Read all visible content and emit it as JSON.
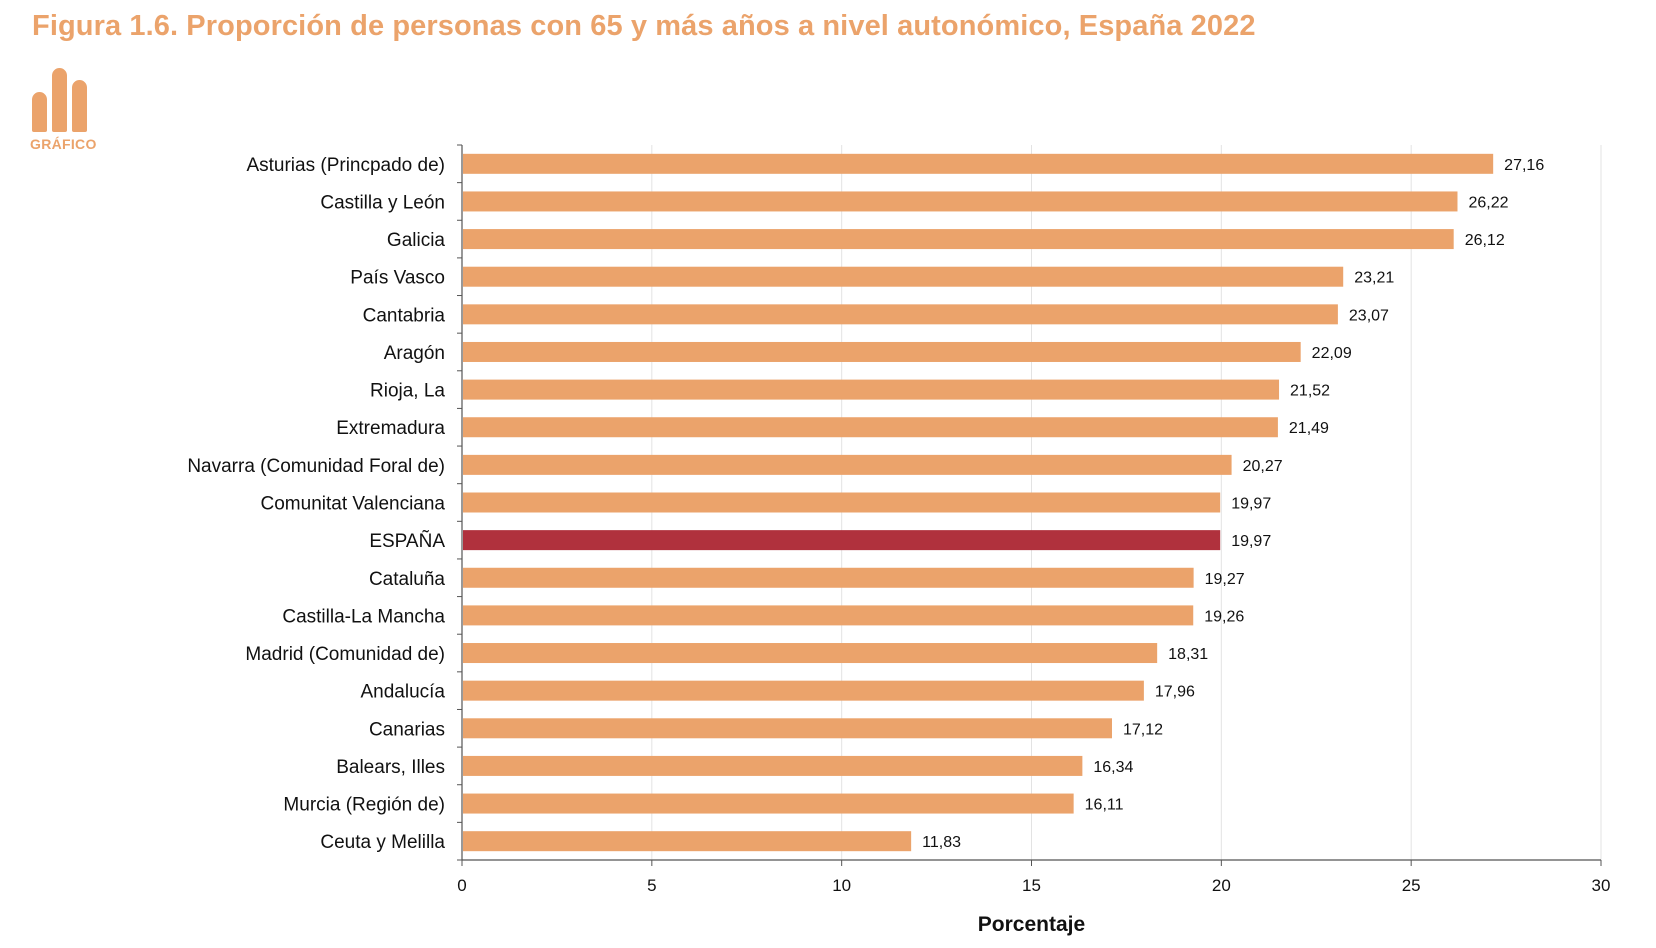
{
  "title": "Figura 1.6. Proporción de personas con 65 y más años a nivel autonómico, España 2022",
  "logo": {
    "label": "GRÁFICO",
    "icon": "bar-chart-logo-icon"
  },
  "colors": {
    "bar": "#eba36b",
    "highlight": "#b0313d",
    "title": "#eba36b",
    "grid": "#e3e3e3"
  },
  "chart_data": {
    "type": "bar",
    "orientation": "horizontal",
    "title": "Figura 1.6. Proporción de personas con 65 y más años a nivel autonómico, España 2022",
    "xlabel": "Porcentaje",
    "ylabel": "",
    "xlim": [
      0,
      30
    ],
    "xticks": [
      0,
      5,
      10,
      15,
      20,
      25,
      30
    ],
    "grid": true,
    "highlight": "ESPAÑA",
    "categories": [
      "Asturias (Princpado de)",
      "Castilla y León",
      "Galicia",
      "País Vasco",
      "Cantabria",
      "Aragón",
      "Rioja, La",
      "Extremadura",
      "Navarra (Comunidad Foral de)",
      "Comunitat Valenciana",
      "ESPAÑA",
      "Cataluña",
      "Castilla-La Mancha",
      "Madrid (Comunidad de)",
      "Andalucía",
      "Canarias",
      "Balears, Illes",
      "Murcia (Región de)",
      "Ceuta y Melilla"
    ],
    "values": [
      27.16,
      26.22,
      26.12,
      23.21,
      23.07,
      22.09,
      21.52,
      21.49,
      20.27,
      19.97,
      19.97,
      19.27,
      19.26,
      18.31,
      17.96,
      17.12,
      16.34,
      16.11,
      11.83
    ],
    "value_labels": [
      "27,16",
      "26,22",
      "26,12",
      "23,21",
      "23,07",
      "22,09",
      "21,52",
      "21,49",
      "20,27",
      "19,97",
      "19,97",
      "19,27",
      "19,26",
      "18,31",
      "17,96",
      "17,12",
      "16,34",
      "16,11",
      "11,83"
    ]
  }
}
